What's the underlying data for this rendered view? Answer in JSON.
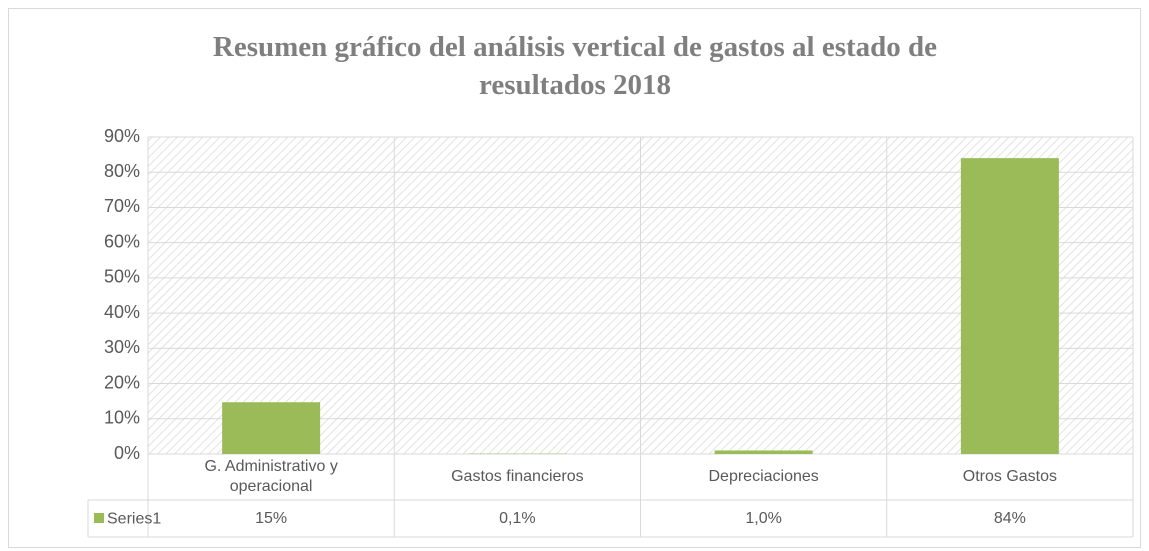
{
  "chart_data": {
    "type": "bar",
    "title": "Resumen gráfico del análisis vertical de gastos al estado de resultados 2018",
    "categories": [
      "G. Administrativo y operacional",
      "Gastos financieros",
      "Depreciaciones",
      "Otros Gastos"
    ],
    "series": [
      {
        "name": "Series1",
        "color": "#9bbb59",
        "values": [
          14.7,
          0.1,
          1.0,
          84
        ],
        "value_labels": [
          "15%",
          "0,1%",
          "1,0%",
          "84%"
        ]
      }
    ],
    "ylim": [
      0,
      90
    ],
    "yticks": [
      {
        "value": 0,
        "label": "0%"
      },
      {
        "value": 10,
        "label": "10%"
      },
      {
        "value": 20,
        "label": "20%"
      },
      {
        "value": 30,
        "label": "30%"
      },
      {
        "value": 40,
        "label": "40%"
      },
      {
        "value": 50,
        "label": "50%"
      },
      {
        "value": 60,
        "label": "60%"
      },
      {
        "value": 70,
        "label": "70%"
      },
      {
        "value": 80,
        "label": "80%"
      },
      {
        "value": 90,
        "label": "90%"
      }
    ],
    "grid": true
  }
}
